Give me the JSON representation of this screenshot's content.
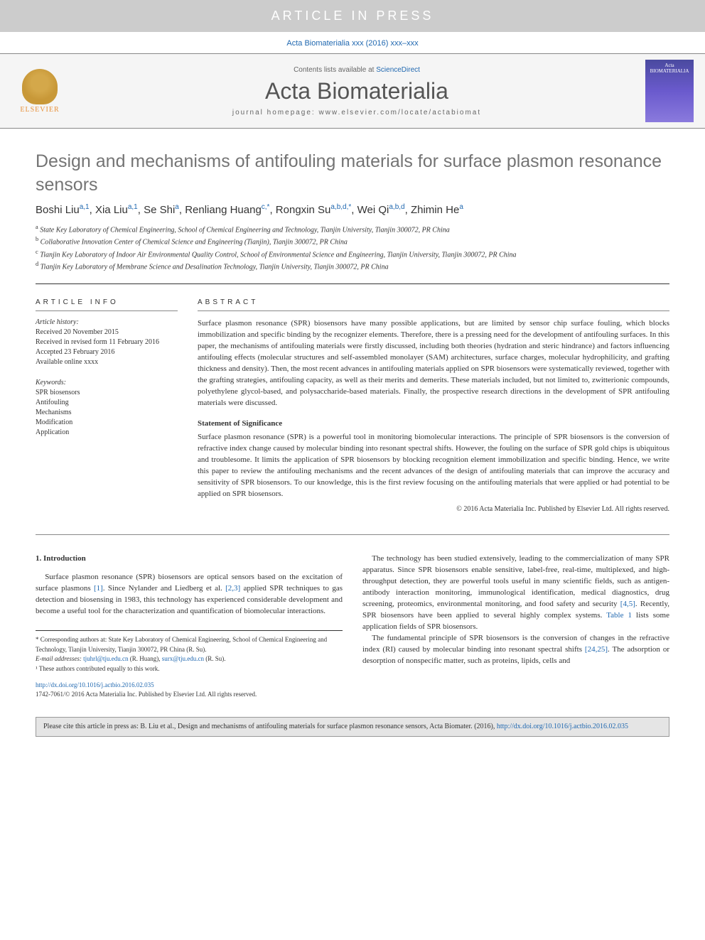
{
  "banner": {
    "text": "ARTICLE IN PRESS"
  },
  "top_citation": "Acta Biomaterialia xxx (2016) xxx–xxx",
  "header": {
    "contents_prefix": "Contents lists available at ",
    "contents_link": "ScienceDirect",
    "journal_name": "Acta Biomaterialia",
    "homepage_label": "journal homepage: www.elsevier.com/locate/actabiomat",
    "elsevier_label": "ELSEVIER",
    "cover_text": "Acta BIOMATERIALIA"
  },
  "title": "Design and mechanisms of antifouling materials for surface plasmon resonance sensors",
  "authors": [
    {
      "name": "Boshi Liu",
      "aff": "a,1"
    },
    {
      "name": "Xia Liu",
      "aff": "a,1"
    },
    {
      "name": "Se Shi",
      "aff": "a"
    },
    {
      "name": "Renliang Huang",
      "aff": "c,*"
    },
    {
      "name": "Rongxin Su",
      "aff": "a,b,d,*"
    },
    {
      "name": "Wei Qi",
      "aff": "a,b,d"
    },
    {
      "name": "Zhimin He",
      "aff": "a"
    }
  ],
  "affiliations": [
    {
      "sup": "a",
      "text": "State Key Laboratory of Chemical Engineering, School of Chemical Engineering and Technology, Tianjin University, Tianjin 300072, PR China"
    },
    {
      "sup": "b",
      "text": "Collaborative Innovation Center of Chemical Science and Engineering (Tianjin), Tianjin 300072, PR China"
    },
    {
      "sup": "c",
      "text": "Tianjin Key Laboratory of Indoor Air Environmental Quality Control, School of Environmental Science and Engineering, Tianjin University, Tianjin 300072, PR China"
    },
    {
      "sup": "d",
      "text": "Tianjin Key Laboratory of Membrane Science and Desalination Technology, Tianjin University, Tianjin 300072, PR China"
    }
  ],
  "info": {
    "heading": "ARTICLE INFO",
    "history_label": "Article history:",
    "history": [
      "Received 20 November 2015",
      "Received in revised form 11 February 2016",
      "Accepted 23 February 2016",
      "Available online xxxx"
    ],
    "keywords_label": "Keywords:",
    "keywords": [
      "SPR biosensors",
      "Antifouling",
      "Mechanisms",
      "Modification",
      "Application"
    ]
  },
  "abstract": {
    "heading": "ABSTRACT",
    "text": "Surface plasmon resonance (SPR) biosensors have many possible applications, but are limited by sensor chip surface fouling, which blocks immobilization and specific binding by the recognizer elements. Therefore, there is a pressing need for the development of antifouling surfaces. In this paper, the mechanisms of antifouling materials were firstly discussed, including both theories (hydration and steric hindrance) and factors influencing antifouling effects (molecular structures and self-assembled monolayer (SAM) architectures, surface charges, molecular hydrophilicity, and grafting thickness and density). Then, the most recent advances in antifouling materials applied on SPR biosensors were systematically reviewed, together with the grafting strategies, antifouling capacity, as well as their merits and demerits. These materials included, but not limited to, zwitterionic compounds, polyethylene glycol-based, and polysaccharide-based materials. Finally, the prospective research directions in the development of SPR antifouling materials were discussed.",
    "statement_heading": "Statement of Significance",
    "statement": "Surface plasmon resonance (SPR) is a powerful tool in monitoring biomolecular interactions. The principle of SPR biosensors is the conversion of refractive index change caused by molecular binding into resonant spectral shifts. However, the fouling on the surface of SPR gold chips is ubiquitous and troublesome. It limits the application of SPR biosensors by blocking recognition element immobilization and specific binding. Hence, we write this paper to review the antifouling mechanisms and the recent advances of the design of antifouling materials that can improve the accuracy and sensitivity of SPR biosensors. To our knowledge, this is the first review focusing on the antifouling materials that were applied or had potential to be applied on SPR biosensors.",
    "copyright": "© 2016 Acta Materialia Inc. Published by Elsevier Ltd. All rights reserved."
  },
  "body": {
    "intro_heading": "1. Introduction",
    "col1_p1_a": "Surface plasmon resonance (SPR) biosensors are optical sensors based on the excitation of surface plasmons ",
    "ref1": "[1]",
    "col1_p1_b": ". Since Nylander and Liedberg et al. ",
    "ref23": "[2,3]",
    "col1_p1_c": " applied SPR techniques to gas detection and biosensing in 1983, this technology has experienced considerable development and become a useful tool for the characterization and quantification of biomolecular interactions.",
    "col2_p1_a": "The technology has been studied extensively, leading to the commercialization of many SPR apparatus. Since SPR biosensors enable sensitive, label-free, real-time, multiplexed, and high-throughput detection, they are powerful tools useful in many scientific fields, such as antigen-antibody interaction monitoring, immunological identification, medical diagnostics, drug screening, proteomics, environmental monitoring, and food safety and security ",
    "ref45": "[4,5]",
    "col2_p1_b": ". Recently, SPR biosensors have been applied to several highly complex systems. ",
    "table1": "Table 1",
    "col2_p1_c": " lists some application fields of SPR biosensors.",
    "col2_p2_a": "The fundamental principle of SPR biosensors is the conversion of changes in the refractive index (RI) caused by molecular binding into resonant spectral shifts ",
    "ref2425": "[24,25]",
    "col2_p2_b": ". The adsorption or desorption of nonspecific matter, such as proteins, lipids, cells and"
  },
  "footnotes": {
    "corr": "* Corresponding authors at: State Key Laboratory of Chemical Engineering, School of Chemical Engineering and Technology, Tianjin University, Tianjin 300072, PR China (R. Su).",
    "email_label": "E-mail addresses: ",
    "email1": "tjuhrl@tju.edu.cn",
    "email1_name": " (R. Huang), ",
    "email2": "surx@tju.edu.cn",
    "email2_name": " (R. Su).",
    "equal": "¹ These authors contributed equally to this work."
  },
  "doi": {
    "link": "http://dx.doi.org/10.1016/j.actbio.2016.02.035",
    "issn": "1742-7061/© 2016 Acta Materialia Inc. Published by Elsevier Ltd. All rights reserved."
  },
  "cite_footer": {
    "prefix": "Please cite this article in press as: B. Liu et al., Design and mechanisms of antifouling materials for surface plasmon resonance sensors, Acta Biomater. (2016), ",
    "link": "http://dx.doi.org/10.1016/j.actbio.2016.02.035"
  },
  "colors": {
    "link": "#2068b0",
    "banner_bg": "#cccccc",
    "header_bg": "#f5f5f5",
    "title_color": "#747474",
    "cite_bg": "#e5e5e5"
  }
}
